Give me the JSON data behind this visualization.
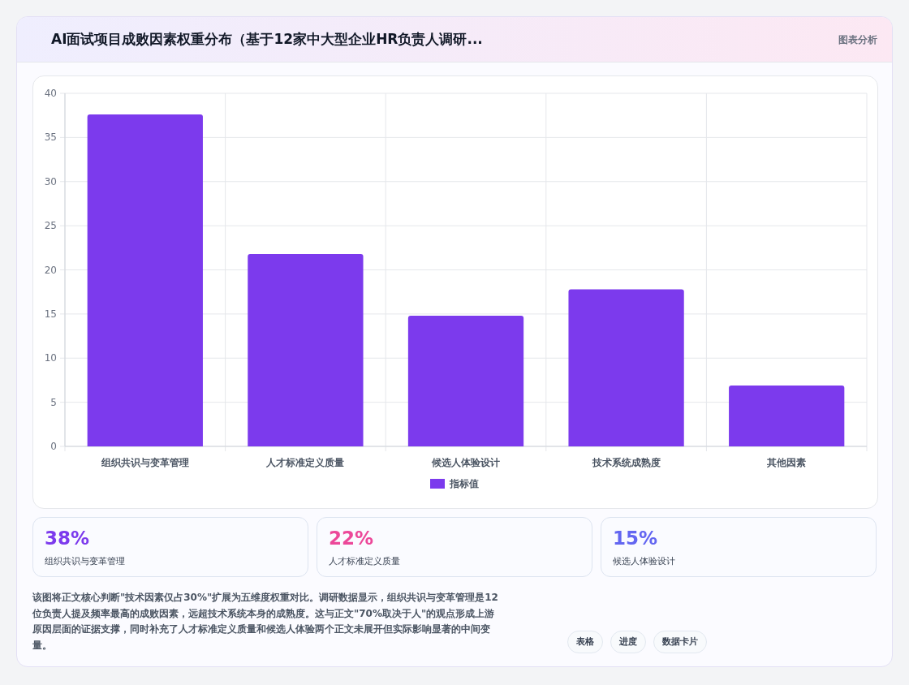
{
  "chart_data": {
    "type": "bar",
    "title": "AI面试项目成败因素权重分布（基于12家中大型企业HR负责人调研...",
    "categories": [
      "组织共识与变革管理",
      "人才标准定义质量",
      "候选人体验设计",
      "技术系统成熟度",
      "其他因素"
    ],
    "series": [
      {
        "name": "指标值",
        "color": "#7c3aed",
        "values": [
          37.6,
          21.8,
          14.8,
          17.8,
          6.9
        ]
      }
    ],
    "ylim": [
      0,
      40
    ],
    "yticks": [
      0,
      5,
      10,
      15,
      20,
      25,
      30,
      35,
      40
    ],
    "grid": true,
    "legend": "bottom",
    "annotations": [
      "图表分析",
      "38%",
      "组织共识与变革管理",
      "22%",
      "人才标准定义质量",
      "15%",
      "候选人体验设计",
      "该图将正文核心判断\"技术因素仅占30%\"扩展为五维度权重对比。调研数据显示，组织共识与变革管理是12位负责人提及频率最高的成败因素，远超技术系统本身的成熟度。这与正文\"70%取决于人\"的观点形成上游原因层面的证据支撑，同时补充了人才标准定义质量和候选人体验两个正文未展开但实际影响显著的中间变量。",
      "表格",
      "进度",
      "数据卡片"
    ]
  }
}
